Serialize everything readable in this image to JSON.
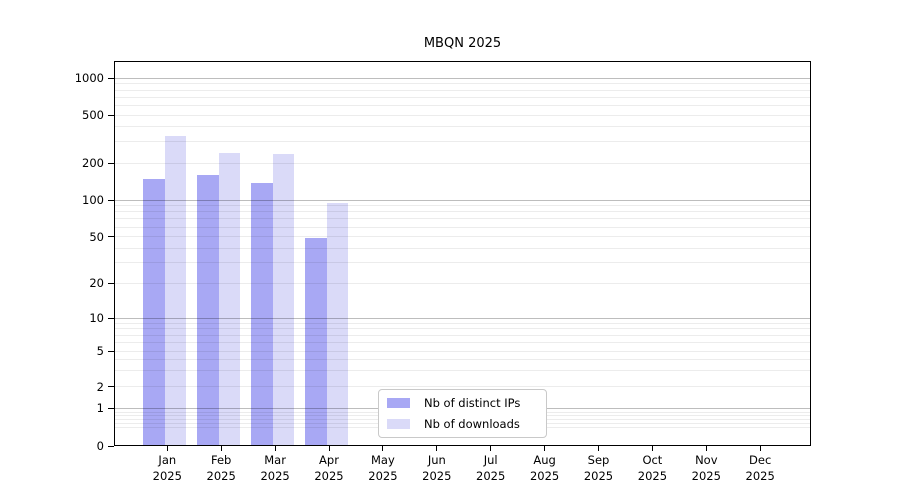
{
  "title": "MBQN 2025",
  "legend": {
    "items": [
      {
        "label": "Nb of distinct IPs",
        "color": "#a8a8f4"
      },
      {
        "label": "Nb of downloads",
        "color": "#dadaf8"
      }
    ]
  },
  "y_axis": {
    "tick_labels": [
      "1000",
      "500",
      "200",
      "100",
      "50",
      "20",
      "10",
      "5",
      "2",
      "1",
      "0"
    ]
  },
  "x_axis": {
    "year": "2025",
    "months": [
      "Jan",
      "Feb",
      "Mar",
      "Apr",
      "May",
      "Jun",
      "Jul",
      "Aug",
      "Sep",
      "Oct",
      "Nov",
      "Dec"
    ]
  },
  "chart_data": {
    "type": "bar",
    "title": "MBQN 2025",
    "categories": [
      "Jan 2025",
      "Feb 2025",
      "Mar 2025",
      "Apr 2025",
      "May 2025",
      "Jun 2025",
      "Jul 2025",
      "Aug 2025",
      "Sep 2025",
      "Oct 2025",
      "Nov 2025",
      "Dec 2025"
    ],
    "series": [
      {
        "name": "Nb of distinct IPs",
        "color": "#a8a8f4",
        "values": [
          150,
          160,
          138,
          49,
          0,
          0,
          0,
          0,
          0,
          0,
          0,
          0
        ]
      },
      {
        "name": "Nb of downloads",
        "color": "#dadaf8",
        "values": [
          335,
          245,
          238,
          94,
          0,
          0,
          0,
          0,
          0,
          0,
          0,
          0
        ]
      }
    ],
    "yscale": "log-like (0,1,2,5,10,20,50,100,200,500,1000)",
    "y_ticks": [
      0,
      1,
      2,
      5,
      10,
      20,
      50,
      100,
      200,
      500,
      1000
    ],
    "ylim": [
      0,
      1400
    ],
    "xlabel": "",
    "ylabel": "",
    "grid": "horizontal major+minor",
    "legend_position": "bottom-center-inside",
    "colors": {
      "major_grid": "#bdbdbd",
      "minor_grid": "#ededed",
      "axis": "#000000",
      "background": "#ffffff"
    }
  }
}
